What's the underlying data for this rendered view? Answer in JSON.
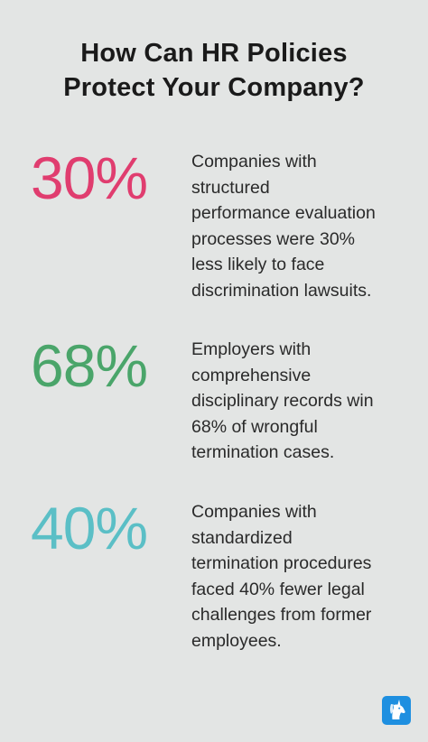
{
  "title_line1": "How Can HR Policies",
  "title_line2": "Protect Your Company?",
  "stats": [
    {
      "value": "30%",
      "color": "#e03d6f",
      "lines": [
        "Companies with",
        "structured",
        "performance evaluation",
        "processes were 30%",
        "less likely to face",
        "discrimination lawsuits."
      ]
    },
    {
      "value": "68%",
      "color": "#4aa56a",
      "lines": [
        "Employers with",
        "comprehensive",
        "disciplinary records win",
        "68% of wrongful",
        "termination cases."
      ]
    },
    {
      "value": "40%",
      "color": "#5bbfc6",
      "lines": [
        "Companies with",
        "standardized",
        "termination procedures",
        "faced 40% fewer legal",
        "challenges from former",
        "employees."
      ]
    }
  ],
  "logo_icon": "unicorn-logo-icon",
  "logo_color": "#1e8fe0"
}
